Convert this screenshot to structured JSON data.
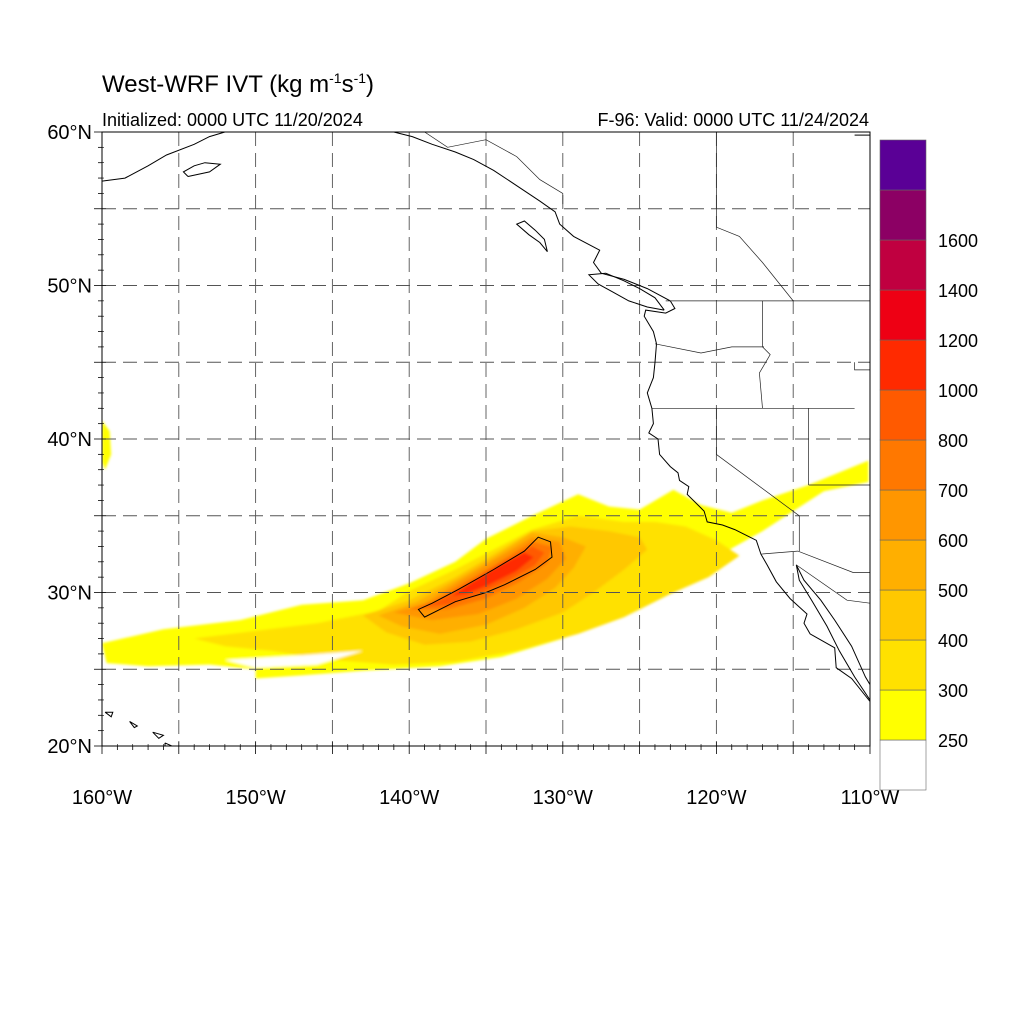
{
  "map": {
    "title_main": "West-WRF IVT (kg m",
    "title_exp1": "-1",
    "title_mid": "s",
    "title_exp2": "-1",
    "title_end": ")",
    "init_text": "Initialized: 0000 UTC 11/20/2024",
    "valid_text": "F-96: Valid: 0000 UTC 11/24/2024",
    "lon_range": [
      -160,
      -110
    ],
    "lat_range": [
      20,
      60
    ],
    "lat_labels": [
      "20°N",
      "30°N",
      "40°N",
      "50°N",
      "60°N"
    ],
    "lon_labels": [
      "160°W",
      "150°W",
      "140°W",
      "130°W",
      "120°W",
      "110°W"
    ],
    "grid": "dashed, every 5 degrees"
  },
  "colorbar": {
    "levels": [
      "250",
      "300",
      "400",
      "500",
      "600",
      "700",
      "800",
      "1000",
      "1200",
      "1400",
      "1600"
    ],
    "colors": [
      "#ffffff",
      "#ffff00",
      "#ffe100",
      "#ffc800",
      "#ffaf00",
      "#ff9600",
      "#ff7800",
      "#ff5a00",
      "#ff2a00",
      "#ee0014",
      "#c00040",
      "#8c0064",
      "#5a0096"
    ]
  }
}
